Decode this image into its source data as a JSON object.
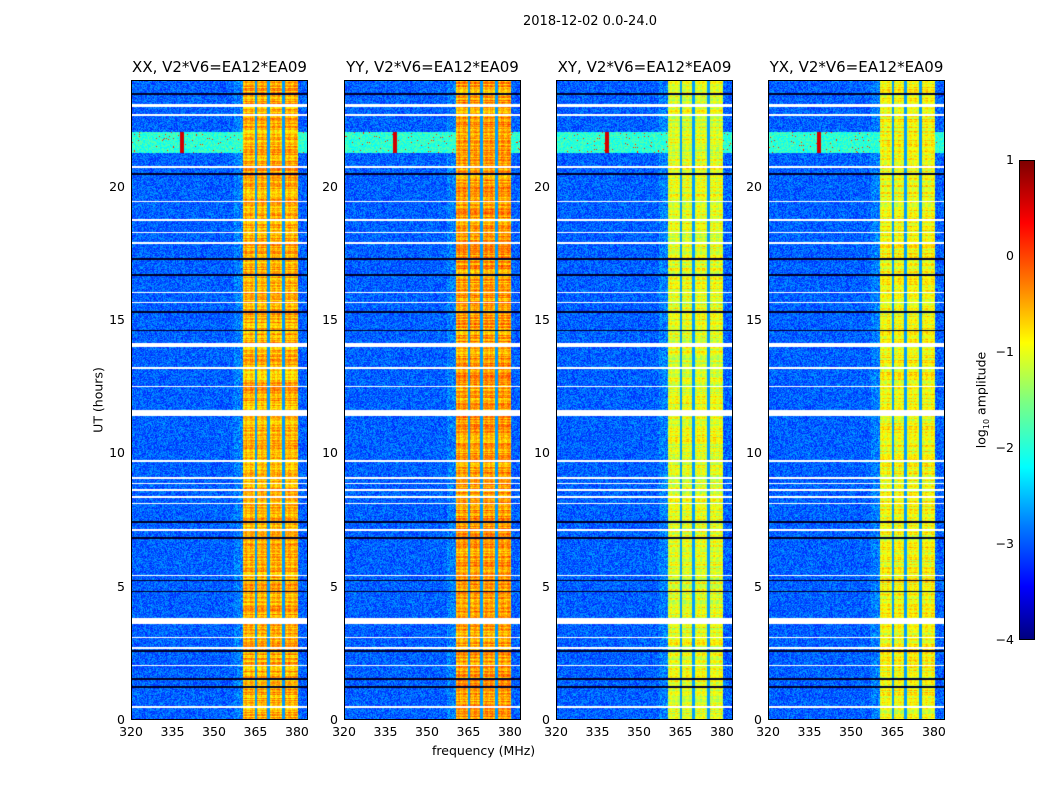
{
  "figure": {
    "suptitle": "2018-12-02 0.0-24.0"
  },
  "chart_data": {
    "type": "heatmap",
    "title": "2018-12-02 0.0-24.0",
    "xlabel": "frequency (MHz)",
    "ylabel": "UT (hours)",
    "xlim": [
      320,
      384
    ],
    "ylim": [
      0,
      24
    ],
    "xticks": [
      "320",
      "335",
      "350",
      "365",
      "380"
    ],
    "xtick_values": [
      320,
      335,
      350,
      365,
      380
    ],
    "yticks": [
      "0",
      "5",
      "10",
      "15",
      "20"
    ],
    "ytick_values": [
      0,
      5,
      10,
      15,
      20
    ],
    "panels": [
      {
        "title": "XX, V2*V6=EA12*EA09",
        "band_level": -0.4
      },
      {
        "title": "YY, V2*V6=EA12*EA09",
        "band_level": -0.3
      },
      {
        "title": "XY, V2*V6=EA12*EA09",
        "band_level": -0.9
      },
      {
        "title": "YX, V2*V6=EA12*EA09",
        "band_level": -0.8
      }
    ],
    "strong_band_mhz": [
      360.5,
      380.5
    ],
    "band_gaps_mhz": [
      365.2,
      369.8,
      375.2
    ],
    "background_level": -2.9,
    "rfi_time_hours": [
      21.3,
      22.1
    ],
    "rfi_spike_mhz": 338,
    "flagged_hours": [
      [
        23.05,
        23.15
      ],
      [
        22.7,
        22.78
      ],
      [
        20.75,
        20.82
      ],
      [
        19.45,
        19.52
      ],
      [
        18.75,
        18.82
      ],
      [
        18.3,
        18.35
      ],
      [
        17.9,
        17.95
      ],
      [
        16.05,
        16.1
      ],
      [
        15.65,
        15.7
      ],
      [
        14.0,
        14.15
      ],
      [
        13.2,
        13.25
      ],
      [
        12.5,
        12.55
      ],
      [
        11.4,
        11.65
      ],
      [
        9.7,
        9.75
      ],
      [
        9.05,
        9.12
      ],
      [
        8.85,
        8.9
      ],
      [
        8.6,
        8.68
      ],
      [
        8.35,
        8.4
      ],
      [
        8.1,
        8.15
      ],
      [
        7.1,
        7.18
      ],
      [
        5.4,
        5.45
      ],
      [
        3.6,
        3.82
      ],
      [
        3.05,
        3.1
      ],
      [
        2.65,
        2.72
      ],
      [
        2.0,
        2.05
      ],
      [
        0.45,
        0.5
      ]
    ],
    "dark_hours": [
      [
        23.5,
        23.55
      ],
      [
        20.5,
        20.55
      ],
      [
        17.3,
        17.35
      ],
      [
        16.7,
        16.75
      ],
      [
        15.3,
        15.35
      ],
      [
        14.6,
        14.65
      ],
      [
        7.4,
        7.45
      ],
      [
        6.8,
        6.85
      ],
      [
        5.2,
        5.25
      ],
      [
        4.8,
        4.85
      ],
      [
        2.55,
        2.6
      ],
      [
        1.5,
        1.55
      ],
      [
        1.2,
        1.25
      ]
    ],
    "colorbar": {
      "label": "log10 amplitude",
      "label_base": "log",
      "label_sub": "10",
      "label_rest": " amplitude",
      "ticks": [
        "1",
        "0",
        "−1",
        "−2",
        "−3",
        "−4"
      ],
      "tick_values": [
        1,
        0,
        -1,
        -2,
        -3,
        -4
      ],
      "range": [
        -4,
        1
      ],
      "colormap": "jet"
    }
  }
}
